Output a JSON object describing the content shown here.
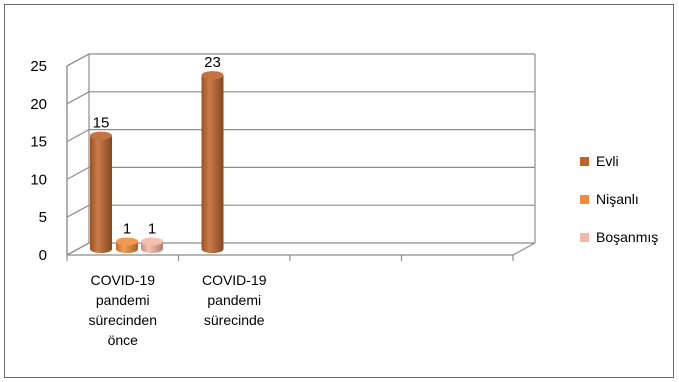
{
  "chart_data": {
    "type": "bar",
    "categories": [
      [
        "COVID-19",
        "pandemi",
        "sürecinden",
        "önce"
      ],
      [
        "COVID-19",
        "pandemi",
        "sürecinde"
      ]
    ],
    "series": [
      {
        "name": "Evli",
        "values": [
          15,
          23
        ],
        "color": "#C0652A"
      },
      {
        "name": "Nişanlı",
        "values": [
          1,
          null
        ],
        "color": "#F08C3C"
      },
      {
        "name": "Boşanmış",
        "values": [
          1,
          null
        ],
        "color": "#F4B8A6"
      }
    ],
    "yticks": [
      "0",
      "5",
      "10",
      "15",
      "20",
      "25"
    ],
    "ylim": [
      0,
      25
    ],
    "grid": true,
    "legend_position": "right",
    "style": "3d-cylinder"
  }
}
